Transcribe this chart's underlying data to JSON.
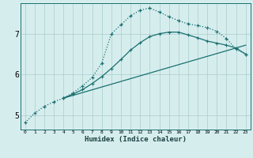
{
  "xlabel": "Humidex (Indice chaleur)",
  "background_color": "#d6edee",
  "grid_color": "#aacccc",
  "line_color": "#1a7070",
  "xlim": [
    -0.5,
    23.5
  ],
  "ylim": [
    4.65,
    7.75
  ],
  "yticks": [
    5,
    6,
    7
  ],
  "xticks": [
    0,
    1,
    2,
    3,
    4,
    5,
    6,
    7,
    8,
    9,
    10,
    11,
    12,
    13,
    14,
    15,
    16,
    17,
    18,
    19,
    20,
    21,
    22,
    23
  ],
  "line1_x": [
    0,
    1,
    2,
    3,
    4,
    5,
    6,
    7,
    8,
    9,
    10,
    11,
    12,
    13,
    14,
    15,
    16,
    17,
    18,
    19,
    20,
    21,
    22,
    23
  ],
  "line1_y": [
    4.82,
    5.05,
    5.22,
    5.33,
    5.42,
    5.55,
    5.72,
    5.93,
    6.28,
    7.0,
    7.22,
    7.44,
    7.58,
    7.63,
    7.53,
    7.42,
    7.32,
    7.24,
    7.2,
    7.15,
    7.06,
    6.88,
    6.62,
    6.5
  ],
  "line2_x": [
    4,
    23
  ],
  "line2_y": [
    5.42,
    6.72
  ],
  "line3_x": [
    4,
    5,
    6,
    7,
    8,
    9,
    10,
    11,
    12,
    13,
    14,
    15,
    16,
    17,
    18,
    19,
    20,
    21,
    22,
    23
  ],
  "line3_y": [
    5.42,
    5.52,
    5.63,
    5.78,
    5.95,
    6.15,
    6.37,
    6.6,
    6.78,
    6.93,
    7.0,
    7.04,
    7.04,
    6.97,
    6.9,
    6.82,
    6.77,
    6.72,
    6.65,
    6.5
  ]
}
